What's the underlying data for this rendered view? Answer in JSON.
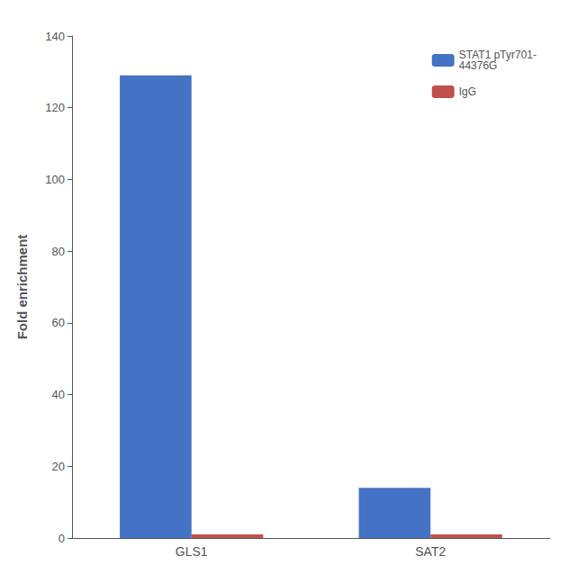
{
  "chart_data": {
    "type": "bar",
    "categories": [
      "GLS1",
      "SAT2"
    ],
    "series": [
      {
        "name": "STAT1 pTyr701-\n44376G",
        "color": "#4472C4",
        "values": [
          129,
          14
        ]
      },
      {
        "name": "IgG",
        "color": "#C0504D",
        "values": [
          1,
          1
        ]
      }
    ],
    "ylabel": "Fold enrichment",
    "ylim": [
      0,
      140
    ],
    "yticks": [
      0,
      20,
      40,
      60,
      80,
      100,
      120,
      140
    ],
    "grid": false,
    "legend": "upper right"
  }
}
